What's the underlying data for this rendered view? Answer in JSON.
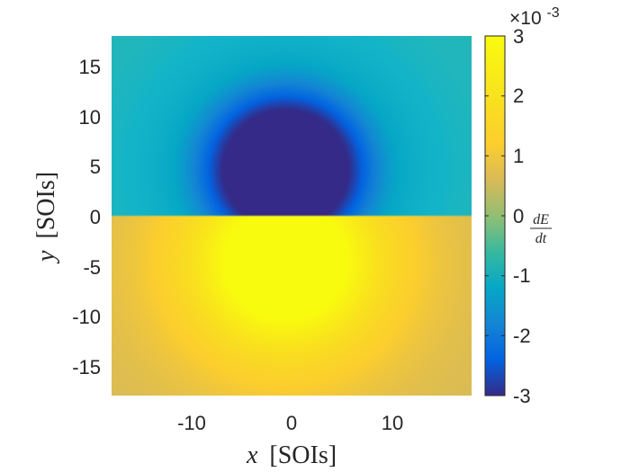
{
  "chart_data": {
    "type": "heatmap",
    "title": "",
    "xlabel": {
      "symbol": "x",
      "unit": "[SOIs]"
    },
    "ylabel": {
      "symbol": "y",
      "unit": "[SOIs]"
    },
    "xlim": [
      -18,
      18
    ],
    "ylim": [
      -18,
      18
    ],
    "x_ticks": [
      -10,
      0,
      10
    ],
    "x_tick_labels": [
      "-10",
      "0",
      "10"
    ],
    "y_ticks": [
      15,
      10,
      5,
      0,
      -5,
      -10,
      -15
    ],
    "y_tick_labels": [
      "15",
      "10",
      "5",
      "0",
      "-5",
      "-10",
      "-15"
    ],
    "colorbar": {
      "label": {
        "numerator": "dE",
        "denominator": "dt"
      },
      "multiplier": "×10-3",
      "multiplier_base": "×10",
      "multiplier_exp": "-3",
      "clim": [
        -3,
        3
      ],
      "ticks": [
        3,
        2,
        1,
        0,
        -1,
        -2,
        -3
      ],
      "tick_labels": [
        "3",
        "2",
        "1",
        "0",
        "-1",
        "-2",
        "-3"
      ],
      "colormap": "parula"
    },
    "field_description": {
      "background_value": -0.4,
      "saturated_negative_region": {
        "center": [
          -0.6,
          4.6
        ],
        "radius": 6.1,
        "value": -3
      },
      "saturated_positive_region": {
        "center": [
          -0.6,
          -4.6
        ],
        "radius": 6.1,
        "value": 3
      },
      "discontinuity_line_y": 0
    },
    "grid": false
  }
}
